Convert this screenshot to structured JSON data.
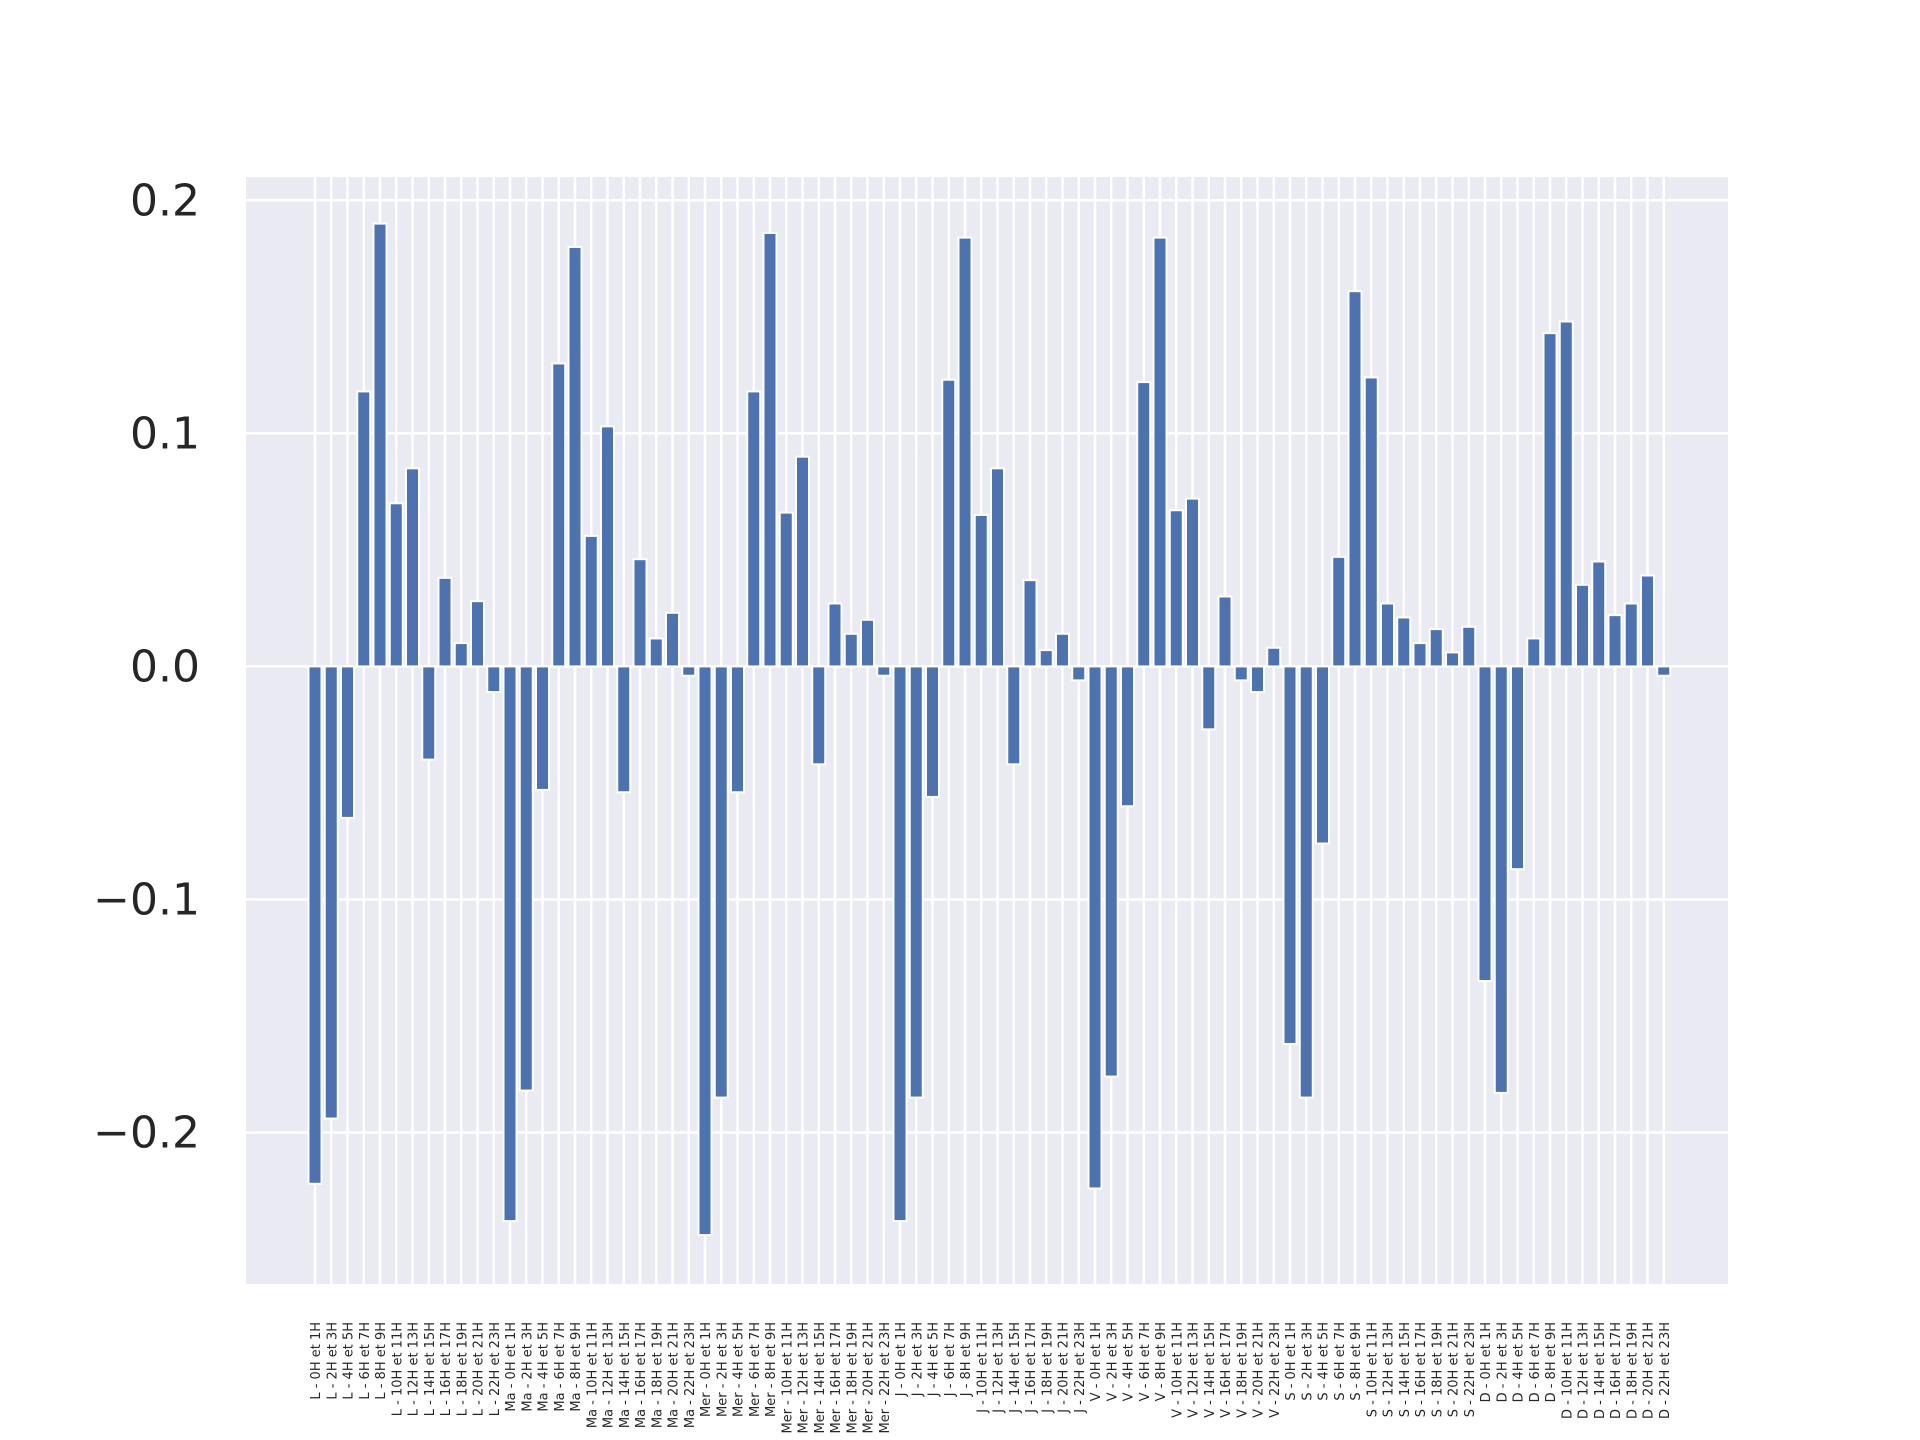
{
  "chart_data": {
    "type": "bar",
    "title": "",
    "xlabel": "",
    "ylabel": "",
    "ylim": [
      -0.265,
      0.21
    ],
    "yticks": [
      -0.2,
      -0.1,
      0.0,
      0.1,
      0.2
    ],
    "ytick_labels": [
      "−0.2",
      "−0.1",
      "0.0",
      "0.1",
      "0.2"
    ],
    "grid": true,
    "colors": {
      "background": "#eaeaf2",
      "grid": "#ffffff",
      "bar": "#4c72b0",
      "bar_edge": "#ffffff",
      "text": "#262626"
    },
    "categories": [
      "L - 0H et 1H",
      "L - 2H et 3H",
      "L - 4H et 5H",
      "L - 6H et 7H",
      "L - 8H et 9H",
      "L - 10H et 11H",
      "L - 12H et 13H",
      "L - 14H et 15H",
      "L - 16H et 17H",
      "L - 18H et 19H",
      "L - 20H et 21H",
      "L - 22H et 23H",
      "Ma - 0H et 1H",
      "Ma - 2H et 3H",
      "Ma - 4H et 5H",
      "Ma - 6H et 7H",
      "Ma - 8H et 9H",
      "Ma - 10H et 11H",
      "Ma - 12H et 13H",
      "Ma - 14H et 15H",
      "Ma - 16H et 17H",
      "Ma - 18H et 19H",
      "Ma - 20H et 21H",
      "Ma - 22H et 23H",
      "Mer - 0H et 1H",
      "Mer - 2H et 3H",
      "Mer - 4H et 5H",
      "Mer - 6H et 7H",
      "Mer - 8H et 9H",
      "Mer - 10H et 11H",
      "Mer - 12H et 13H",
      "Mer - 14H et 15H",
      "Mer - 16H et 17H",
      "Mer - 18H et 19H",
      "Mer - 20H et 21H",
      "Mer - 22H et 23H",
      "J - 0H et 1H",
      "J - 2H et 3H",
      "J - 4H et 5H",
      "J - 6H et 7H",
      "J - 8H et 9H",
      "J - 10H et 11H",
      "J - 12H et 13H",
      "J - 14H et 15H",
      "J - 16H et 17H",
      "J - 18H et 19H",
      "J - 20H et 21H",
      "J - 22H et 23H",
      "V - 0H et 1H",
      "V - 2H et 3H",
      "V - 4H et 5H",
      "V - 6H et 7H",
      "V - 8H et 9H",
      "V - 10H et 11H",
      "V - 12H et 13H",
      "V - 14H et 15H",
      "V - 16H et 17H",
      "V - 18H et 19H",
      "V - 20H et 21H",
      "V - 22H et 23H",
      "S - 0H et 1H",
      "S - 2H et 3H",
      "S - 4H et 5H",
      "S - 6H et 7H",
      "S - 8H et 9H",
      "S - 10H et 11H",
      "S - 12H et 13H",
      "S - 14H et 15H",
      "S - 16H et 17H",
      "S - 18H et 19H",
      "S - 20H et 21H",
      "S - 22H et 23H",
      "D - 0H et 1H",
      "D - 2H et 3H",
      "D - 4H et 5H",
      "D - 6H et 7H",
      "D - 8H et 9H",
      "D - 10H et 11H",
      "D - 12H et 13H",
      "D - 14H et 15H",
      "D - 16H et 17H",
      "D - 18H et 19H",
      "D - 20H et 21H",
      "D - 22H et 23H"
    ],
    "values": [
      -0.222,
      -0.194,
      -0.065,
      0.118,
      0.19,
      0.07,
      0.085,
      -0.04,
      0.038,
      0.01,
      0.028,
      -0.011,
      -0.238,
      -0.182,
      -0.053,
      0.13,
      0.18,
      0.056,
      0.103,
      -0.054,
      0.046,
      0.012,
      0.023,
      -0.004,
      -0.244,
      -0.185,
      -0.054,
      0.118,
      0.186,
      0.066,
      0.09,
      -0.042,
      0.027,
      0.014,
      0.02,
      -0.004,
      -0.238,
      -0.185,
      -0.056,
      0.123,
      0.184,
      0.065,
      0.085,
      -0.042,
      0.037,
      0.007,
      0.014,
      -0.006,
      -0.224,
      -0.176,
      -0.06,
      0.122,
      0.184,
      0.067,
      0.072,
      -0.027,
      0.03,
      -0.006,
      -0.011,
      0.008,
      -0.162,
      -0.185,
      -0.076,
      0.047,
      0.161,
      0.124,
      0.027,
      0.021,
      0.01,
      0.016,
      0.006,
      0.017,
      -0.135,
      -0.183,
      -0.087,
      0.012,
      0.143,
      0.148,
      0.035,
      0.045,
      0.022,
      0.027,
      0.039,
      -0.004
    ]
  }
}
